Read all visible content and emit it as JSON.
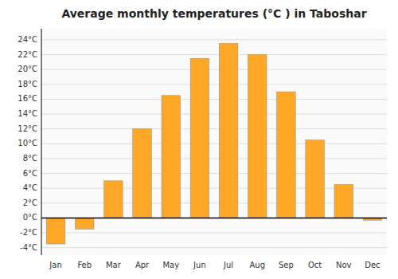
{
  "chart_data": {
    "type": "bar",
    "title": "Average monthly temperatures (°C ) in Taboshar",
    "categories": [
      "Jan",
      "Feb",
      "Mar",
      "Apr",
      "May",
      "Jun",
      "Jul",
      "Aug",
      "Sep",
      "Oct",
      "Nov",
      "Dec"
    ],
    "values": [
      -3.5,
      -1.5,
      5.0,
      12.0,
      16.5,
      21.5,
      23.5,
      22.0,
      17.0,
      10.5,
      4.5,
      -0.3
    ],
    "color": "#FFA726",
    "ylim": [
      -5,
      25.5
    ],
    "yticks": [
      {
        "value": -4,
        "label": "-4°C"
      },
      {
        "value": -2,
        "label": "-2°C"
      },
      {
        "value": 0,
        "label": "0°C"
      },
      {
        "value": 2,
        "label": "2°C"
      },
      {
        "value": 4,
        "label": "4°C"
      },
      {
        "value": 6,
        "label": "6°C"
      },
      {
        "value": 8,
        "label": "8°C"
      },
      {
        "value": 10,
        "label": "10°C"
      },
      {
        "value": 12,
        "label": "12°C"
      },
      {
        "value": 14,
        "label": "14°C"
      },
      {
        "value": 16,
        "label": "16°C"
      },
      {
        "value": 18,
        "label": "18°C"
      },
      {
        "value": 20,
        "label": "20°C"
      },
      {
        "value": 22,
        "label": "22°C"
      },
      {
        "value": 24,
        "label": "24°C"
      }
    ],
    "grid": true
  }
}
